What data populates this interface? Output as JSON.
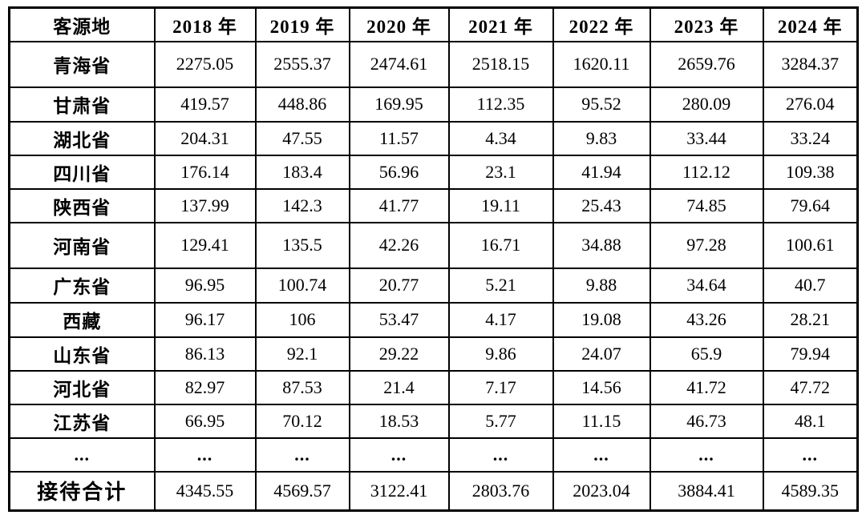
{
  "table": {
    "header": [
      "客源地",
      "2018 年",
      "2019 年",
      "2020 年",
      "2021 年",
      "2022 年",
      "2023 年",
      "2024 年"
    ],
    "rows": [
      {
        "label": "青海省",
        "values": [
          "2275.05",
          "2555.37",
          "2474.61",
          "2518.15",
          "1620.11",
          "2659.76",
          "3284.37"
        ]
      },
      {
        "label": "甘肃省",
        "values": [
          "419.57",
          "448.86",
          "169.95",
          "112.35",
          "95.52",
          "280.09",
          "276.04"
        ]
      },
      {
        "label": "湖北省",
        "values": [
          "204.31",
          "47.55",
          "11.57",
          "4.34",
          "9.83",
          "33.44",
          "33.24"
        ]
      },
      {
        "label": "四川省",
        "values": [
          "176.14",
          "183.4",
          "56.96",
          "23.1",
          "41.94",
          "112.12",
          "109.38"
        ]
      },
      {
        "label": "陕西省",
        "values": [
          "137.99",
          "142.3",
          "41.77",
          "19.11",
          "25.43",
          "74.85",
          "79.64"
        ]
      },
      {
        "label": "河南省",
        "values": [
          "129.41",
          "135.5",
          "42.26",
          "16.71",
          "34.88",
          "97.28",
          "100.61"
        ]
      },
      {
        "label": "广东省",
        "values": [
          "96.95",
          "100.74",
          "20.77",
          "5.21",
          "9.88",
          "34.64",
          "40.7"
        ]
      },
      {
        "label": "西藏",
        "values": [
          "96.17",
          "106",
          "53.47",
          "4.17",
          "19.08",
          "43.26",
          "28.21"
        ]
      },
      {
        "label": "山东省",
        "values": [
          "86.13",
          "92.1",
          "29.22",
          "9.86",
          "24.07",
          "65.9",
          "79.94"
        ]
      },
      {
        "label": "河北省",
        "values": [
          "82.97",
          "87.53",
          "21.4",
          "7.17",
          "14.56",
          "41.72",
          "47.72"
        ]
      },
      {
        "label": "江苏省",
        "values": [
          "66.95",
          "70.12",
          "18.53",
          "5.77",
          "11.15",
          "46.73",
          "48.1"
        ]
      },
      {
        "label": "...",
        "values": [
          "...",
          "...",
          "...",
          "...",
          "...",
          "...",
          "..."
        ],
        "ellipsis": true
      },
      {
        "label": "接待合计",
        "values": [
          "4345.55",
          "4569.57",
          "3122.41",
          "2803.76",
          "2023.04",
          "3884.41",
          "4589.35"
        ],
        "total": true
      }
    ]
  },
  "colors": {
    "border": "#000000",
    "text": "#000000",
    "background": "#ffffff"
  }
}
